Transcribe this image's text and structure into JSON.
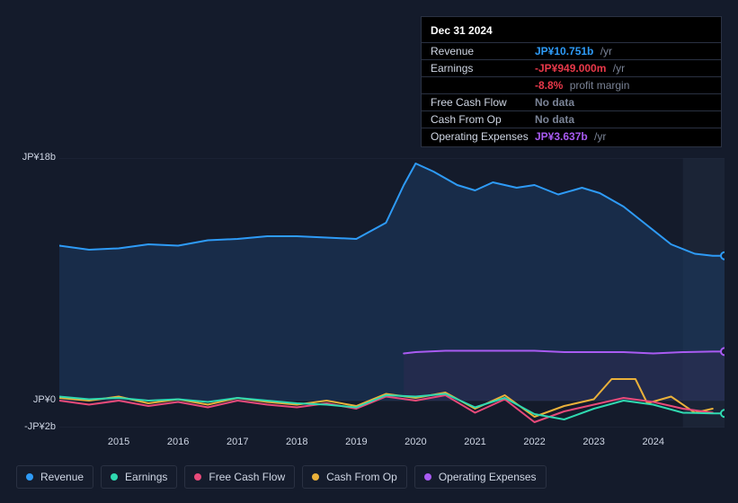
{
  "background_color": "#141b2b",
  "tooltip": {
    "title": "Dec 31 2024",
    "rows": [
      {
        "label": "Revenue",
        "value": "JP¥10.751b",
        "value_color": "#2e9bf7",
        "suffix": "/yr"
      },
      {
        "label": "Earnings",
        "value": "-JP¥949.000m",
        "value_color": "#e8394a",
        "suffix": "/yr"
      },
      {
        "label": "",
        "value": "-8.8%",
        "value_color": "#e8394a",
        "suffix": "profit margin"
      },
      {
        "label": "Free Cash Flow",
        "value": "No data",
        "value_color": "#7a8396",
        "suffix": ""
      },
      {
        "label": "Cash From Op",
        "value": "No data",
        "value_color": "#7a8396",
        "suffix": ""
      },
      {
        "label": "Operating Expenses",
        "value": "JP¥3.637b",
        "value_color": "#a95bf2",
        "suffix": "/yr"
      }
    ]
  },
  "chart": {
    "type": "area-line",
    "x_start_year": 2014.0,
    "x_end_year": 2025.2,
    "x_ticks": [
      2015,
      2016,
      2017,
      2018,
      2019,
      2020,
      2021,
      2022,
      2023,
      2024
    ],
    "y_min_b": -2,
    "y_max_b": 18,
    "y_ticks": [
      {
        "v": 18,
        "label": "JP¥18b"
      },
      {
        "v": 0,
        "label": "JP¥0"
      },
      {
        "v": -2,
        "label": "-JP¥2b"
      }
    ],
    "grid_color": "#222a3d",
    "future_shade_from_year": 2024.5,
    "future_shade_color": "#1b2436",
    "series": [
      {
        "name": "Revenue",
        "color": "#2e9bf7",
        "fill": "#1c3a63",
        "fill_opacity": 0.55,
        "lw": 2,
        "data": [
          [
            2014.0,
            11.5
          ],
          [
            2014.5,
            11.2
          ],
          [
            2015.0,
            11.3
          ],
          [
            2015.5,
            11.6
          ],
          [
            2016.0,
            11.5
          ],
          [
            2016.5,
            11.9
          ],
          [
            2017.0,
            12.0
          ],
          [
            2017.5,
            12.2
          ],
          [
            2018.0,
            12.2
          ],
          [
            2018.5,
            12.1
          ],
          [
            2019.0,
            12.0
          ],
          [
            2019.5,
            13.2
          ],
          [
            2019.8,
            16.0
          ],
          [
            2020.0,
            17.6
          ],
          [
            2020.3,
            17.0
          ],
          [
            2020.7,
            16.0
          ],
          [
            2021.0,
            15.6
          ],
          [
            2021.3,
            16.2
          ],
          [
            2021.7,
            15.8
          ],
          [
            2022.0,
            16.0
          ],
          [
            2022.4,
            15.3
          ],
          [
            2022.8,
            15.8
          ],
          [
            2023.1,
            15.4
          ],
          [
            2023.5,
            14.4
          ],
          [
            2023.9,
            13.0
          ],
          [
            2024.3,
            11.6
          ],
          [
            2024.7,
            10.9
          ],
          [
            2025.0,
            10.75
          ],
          [
            2025.2,
            10.75
          ]
        ],
        "end_dot": true
      },
      {
        "name": "Operating Expenses",
        "color": "#a95bf2",
        "fill": "#3a2a55",
        "fill_opacity": 0.35,
        "lw": 2,
        "data": [
          [
            2019.8,
            3.5
          ],
          [
            2020.0,
            3.6
          ],
          [
            2020.5,
            3.7
          ],
          [
            2021.0,
            3.7
          ],
          [
            2021.5,
            3.7
          ],
          [
            2022.0,
            3.7
          ],
          [
            2022.5,
            3.6
          ],
          [
            2023.0,
            3.6
          ],
          [
            2023.5,
            3.6
          ],
          [
            2024.0,
            3.5
          ],
          [
            2024.5,
            3.6
          ],
          [
            2025.0,
            3.64
          ],
          [
            2025.2,
            3.64
          ]
        ],
        "end_dot": true
      },
      {
        "name": "Cash From Op",
        "color": "#eab13a",
        "fill": null,
        "lw": 2,
        "data": [
          [
            2014.0,
            0.2
          ],
          [
            2014.5,
            0.0
          ],
          [
            2015.0,
            0.3
          ],
          [
            2015.5,
            -0.2
          ],
          [
            2016.0,
            0.1
          ],
          [
            2016.5,
            -0.3
          ],
          [
            2017.0,
            0.2
          ],
          [
            2017.5,
            -0.1
          ],
          [
            2018.0,
            -0.3
          ],
          [
            2018.5,
            0.0
          ],
          [
            2019.0,
            -0.4
          ],
          [
            2019.5,
            0.5
          ],
          [
            2020.0,
            0.2
          ],
          [
            2020.5,
            0.6
          ],
          [
            2021.0,
            -0.6
          ],
          [
            2021.5,
            0.4
          ],
          [
            2022.0,
            -1.2
          ],
          [
            2022.5,
            -0.4
          ],
          [
            2023.0,
            0.1
          ],
          [
            2023.3,
            1.6
          ],
          [
            2023.7,
            1.6
          ],
          [
            2023.9,
            -0.2
          ],
          [
            2024.3,
            0.3
          ],
          [
            2024.7,
            -0.9
          ],
          [
            2025.0,
            -0.6
          ]
        ]
      },
      {
        "name": "Free Cash Flow",
        "color": "#e84a7a",
        "fill": null,
        "lw": 2,
        "data": [
          [
            2014.0,
            0.0
          ],
          [
            2014.5,
            -0.3
          ],
          [
            2015.0,
            0.0
          ],
          [
            2015.5,
            -0.4
          ],
          [
            2016.0,
            -0.1
          ],
          [
            2016.5,
            -0.5
          ],
          [
            2017.0,
            0.0
          ],
          [
            2017.5,
            -0.3
          ],
          [
            2018.0,
            -0.5
          ],
          [
            2018.5,
            -0.2
          ],
          [
            2019.0,
            -0.6
          ],
          [
            2019.5,
            0.3
          ],
          [
            2020.0,
            0.0
          ],
          [
            2020.5,
            0.4
          ],
          [
            2021.0,
            -0.9
          ],
          [
            2021.5,
            0.1
          ],
          [
            2022.0,
            -1.6
          ],
          [
            2022.5,
            -0.8
          ],
          [
            2023.0,
            -0.3
          ],
          [
            2023.5,
            0.2
          ],
          [
            2024.0,
            -0.1
          ],
          [
            2024.5,
            -0.6
          ],
          [
            2025.0,
            -0.9
          ]
        ]
      },
      {
        "name": "Earnings",
        "color": "#2fd9b0",
        "fill": null,
        "lw": 2,
        "data": [
          [
            2014.0,
            0.3
          ],
          [
            2014.5,
            0.1
          ],
          [
            2015.0,
            0.2
          ],
          [
            2015.5,
            0.0
          ],
          [
            2016.0,
            0.1
          ],
          [
            2016.5,
            -0.1
          ],
          [
            2017.0,
            0.2
          ],
          [
            2017.5,
            0.0
          ],
          [
            2018.0,
            -0.2
          ],
          [
            2018.5,
            -0.3
          ],
          [
            2019.0,
            -0.5
          ],
          [
            2019.5,
            0.4
          ],
          [
            2020.0,
            0.3
          ],
          [
            2020.5,
            0.5
          ],
          [
            2021.0,
            -0.5
          ],
          [
            2021.5,
            0.2
          ],
          [
            2022.0,
            -1.0
          ],
          [
            2022.5,
            -1.4
          ],
          [
            2023.0,
            -0.6
          ],
          [
            2023.5,
            0.0
          ],
          [
            2024.0,
            -0.3
          ],
          [
            2024.5,
            -0.9
          ],
          [
            2025.0,
            -0.95
          ],
          [
            2025.2,
            -0.95
          ]
        ],
        "end_dot": true
      }
    ]
  },
  "legend": [
    {
      "label": "Revenue",
      "color": "#2e9bf7"
    },
    {
      "label": "Earnings",
      "color": "#2fd9b0"
    },
    {
      "label": "Free Cash Flow",
      "color": "#e84a7a"
    },
    {
      "label": "Cash From Op",
      "color": "#eab13a"
    },
    {
      "label": "Operating Expenses",
      "color": "#a95bf2"
    }
  ]
}
